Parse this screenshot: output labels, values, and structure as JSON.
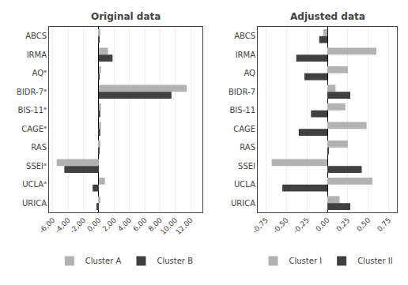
{
  "chart_data": [
    {
      "type": "bar",
      "orientation": "horizontal",
      "title": "Original data",
      "categories": [
        "ABCS",
        "IRMA",
        "AQᵃ",
        "BIDR-7ᵃ",
        "BIS-11ᵃ",
        "CAGEᵃ",
        "RAS",
        "SSEIᵃ",
        "UCLAᵃ",
        "URICA"
      ],
      "series": [
        {
          "name": "Cluster A",
          "color": "#b2b2b2",
          "values": [
            0.2,
            1.2,
            0.3,
            11.5,
            0.3,
            0.3,
            0.2,
            -5.5,
            0.8,
            0.2
          ]
        },
        {
          "name": "Cluster B",
          "color": "#404040",
          "values": [
            0.1,
            1.8,
            0.1,
            9.5,
            0.2,
            0.2,
            0.1,
            -4.5,
            -0.8,
            -0.3
          ]
        }
      ],
      "xlim": [
        -6.5,
        13.5
      ],
      "xticks": [
        {
          "value": -6.0,
          "label": "-6,00"
        },
        {
          "value": -4.0,
          "label": "-4,00"
        },
        {
          "value": -2.0,
          "label": "-2,00"
        },
        {
          "value": 0.0,
          "label": "0,00"
        },
        {
          "value": 2.0,
          "label": "2,00"
        },
        {
          "value": 4.0,
          "label": "4,00"
        },
        {
          "value": 6.0,
          "label": "6,00"
        },
        {
          "value": 8.0,
          "label": "8,00"
        },
        {
          "value": 10.0,
          "label": "10,00"
        },
        {
          "value": 12.0,
          "label": "12,00"
        }
      ],
      "grid": true,
      "legend": "bottom"
    },
    {
      "type": "bar",
      "orientation": "horizontal",
      "title": "Adjusted data",
      "categories": [
        "ABCS",
        "IRMA",
        "AQ",
        "BIDR-7",
        "BIS-11",
        "CAGE",
        "RAS",
        "SSEI",
        "UCLA",
        "URICA"
      ],
      "series": [
        {
          "name": "Cluster I",
          "color": "#b2b2b2",
          "values": [
            -0.05,
            0.6,
            0.25,
            0.1,
            0.22,
            0.48,
            0.25,
            -0.68,
            0.55,
            0.15
          ]
        },
        {
          "name": "Cluster II",
          "color": "#404040",
          "values": [
            -0.1,
            -0.38,
            -0.28,
            0.28,
            -0.2,
            -0.35,
            0.02,
            0.42,
            -0.55,
            0.28
          ]
        }
      ],
      "xlim": [
        -0.85,
        0.85
      ],
      "xticks": [
        {
          "value": -0.75,
          "label": "-0,75"
        },
        {
          "value": -0.5,
          "label": "-0,50"
        },
        {
          "value": -0.25,
          "label": "-0,25"
        },
        {
          "value": 0.0,
          "label": "0,00"
        },
        {
          "value": 0.25,
          "label": "0,25"
        },
        {
          "value": 0.5,
          "label": "0,50"
        },
        {
          "value": 0.75,
          "label": "0,75"
        }
      ],
      "grid": true,
      "legend": "bottom"
    }
  ]
}
